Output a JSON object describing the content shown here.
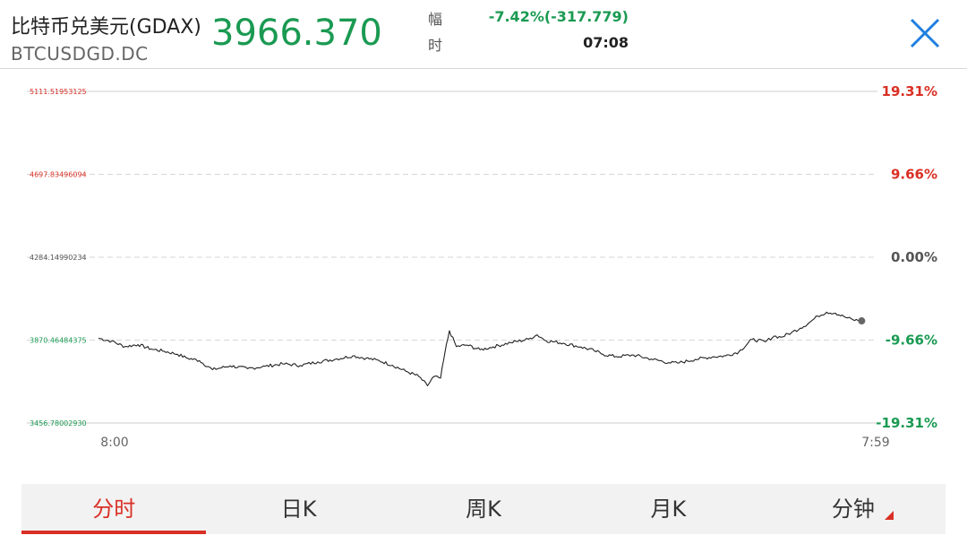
{
  "header": {
    "name": "比特币兑美元(GDAX)",
    "code": "BTCUSDGD.DC",
    "price": "3966.370",
    "change_label": "幅",
    "time_label": "时",
    "change": "-7.42%(-317.779)",
    "time": "07:08",
    "close_icon": "close-icon"
  },
  "colors": {
    "up": "#d93025",
    "down": "#1a9a52",
    "neutral": "#555555",
    "line": "#222222"
  },
  "chart_data": {
    "type": "line",
    "prev_close": 4284.14990234,
    "y_left_labels": [
      "5111.51953125",
      "4697.83496094",
      "4284.14990234",
      "3870.46484375",
      "3456.78002930"
    ],
    "y_right_labels": [
      "19.31%",
      "9.66%",
      "0.00%",
      "-9.66%",
      "-19.31%"
    ],
    "x_labels": [
      "8:00",
      "7:59"
    ],
    "ylim": [
      3456.7800293,
      5111.51953125
    ],
    "last_value": 3966.37,
    "points": [
      [
        0,
        3880
      ],
      [
        15,
        3865
      ],
      [
        30,
        3838
      ],
      [
        45,
        3848
      ],
      [
        60,
        3826
      ],
      [
        75,
        3815
      ],
      [
        90,
        3800
      ],
      [
        100,
        3782
      ],
      [
        115,
        3768
      ],
      [
        130,
        3723
      ],
      [
        150,
        3742
      ],
      [
        170,
        3728
      ],
      [
        190,
        3740
      ],
      [
        210,
        3752
      ],
      [
        230,
        3744
      ],
      [
        250,
        3762
      ],
      [
        270,
        3775
      ],
      [
        290,
        3792
      ],
      [
        305,
        3780
      ],
      [
        320,
        3768
      ],
      [
        335,
        3745
      ],
      [
        350,
        3716
      ],
      [
        365,
        3690
      ],
      [
        375,
        3643
      ],
      [
        382,
        3688
      ],
      [
        390,
        3681
      ],
      [
        395,
        3810
      ],
      [
        400,
        3917
      ],
      [
        408,
        3838
      ],
      [
        420,
        3846
      ],
      [
        435,
        3822
      ],
      [
        450,
        3837
      ],
      [
        470,
        3858
      ],
      [
        490,
        3875
      ],
      [
        500,
        3897
      ],
      [
        510,
        3868
      ],
      [
        530,
        3855
      ],
      [
        550,
        3836
      ],
      [
        565,
        3818
      ],
      [
        575,
        3800
      ],
      [
        590,
        3788
      ],
      [
        610,
        3796
      ],
      [
        630,
        3776
      ],
      [
        650,
        3758
      ],
      [
        660,
        3756
      ],
      [
        680,
        3774
      ],
      [
        700,
        3787
      ],
      [
        715,
        3792
      ],
      [
        730,
        3812
      ],
      [
        745,
        3874
      ],
      [
        760,
        3862
      ],
      [
        770,
        3890
      ],
      [
        778,
        3885
      ],
      [
        790,
        3908
      ],
      [
        800,
        3930
      ],
      [
        810,
        3957
      ],
      [
        820,
        3990
      ],
      [
        830,
        4010
      ],
      [
        840,
        4005
      ],
      [
        850,
        3987
      ],
      [
        860,
        3972
      ],
      [
        870,
        3966.37
      ]
    ]
  },
  "tabs": [
    {
      "label": "分时",
      "active": true
    },
    {
      "label": "日K",
      "active": false
    },
    {
      "label": "周K",
      "active": false
    },
    {
      "label": "月K",
      "active": false
    },
    {
      "label": "分钟",
      "active": false
    }
  ]
}
